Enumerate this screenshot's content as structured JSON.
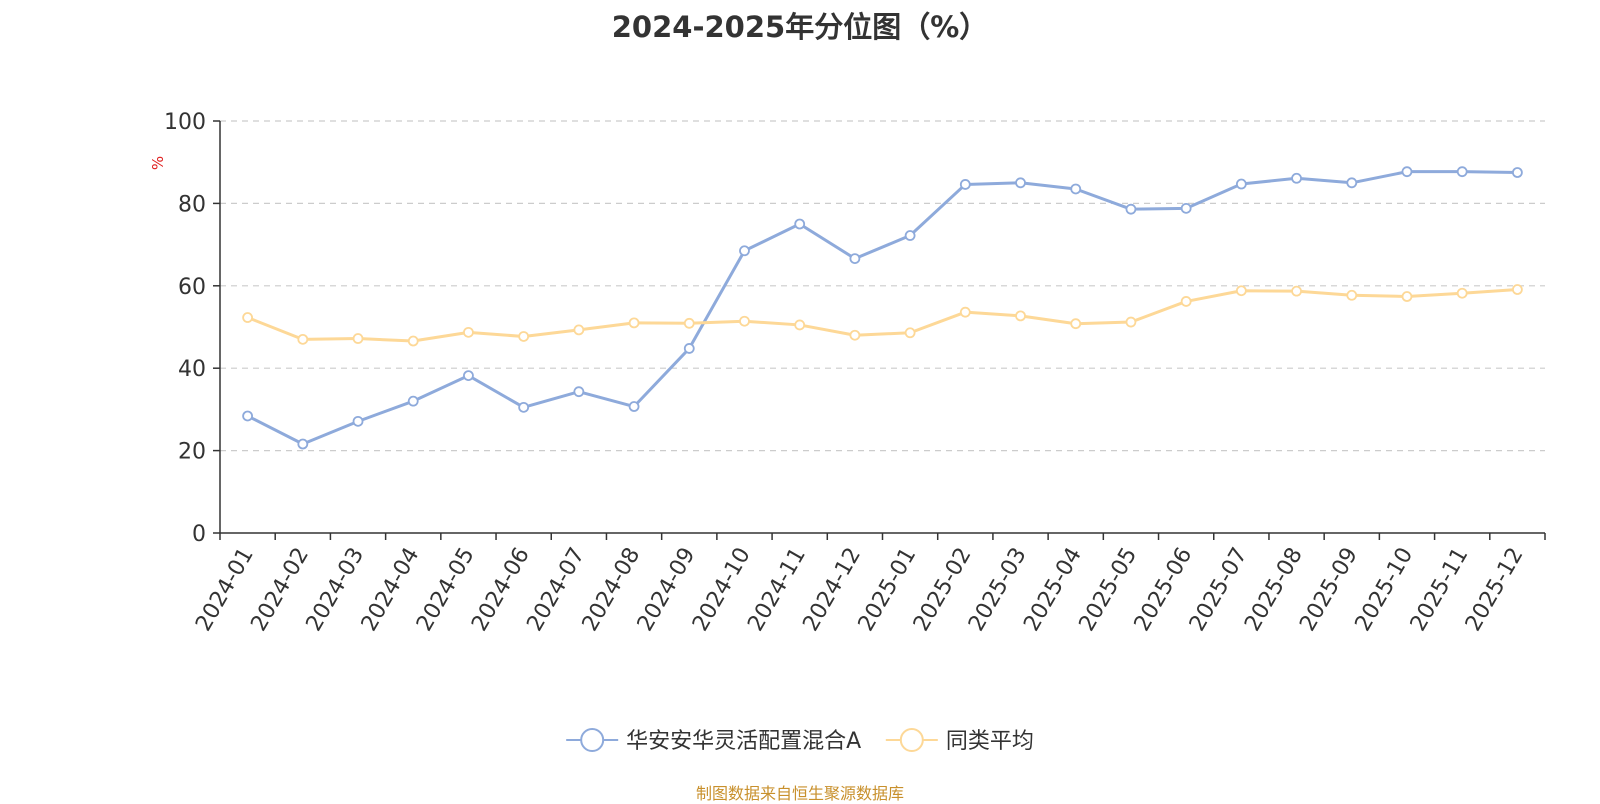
{
  "chart_data": {
    "type": "line",
    "title": "2024-2025年分位图（%）",
    "ylabel": "%",
    "xlabel": "",
    "ylim": [
      0,
      100
    ],
    "yticks": [
      0,
      20,
      40,
      60,
      80,
      100
    ],
    "grid": true,
    "legend_position": "bottom-center",
    "categories": [
      "2024-01",
      "2024-02",
      "2024-03",
      "2024-04",
      "2024-05",
      "2024-06",
      "2024-07",
      "2024-08",
      "2024-09",
      "2024-10",
      "2024-11",
      "2024-12",
      "2025-01",
      "2025-02",
      "2025-03",
      "2025-04",
      "2025-05",
      "2025-06",
      "2025-07",
      "2025-08",
      "2025-09",
      "2025-10",
      "2025-11",
      "2025-12"
    ],
    "series": [
      {
        "name": "华安安华灵活配置混合A",
        "color": "#8eaadb",
        "values": [
          28.4,
          21.6,
          27.1,
          32.0,
          38.2,
          30.5,
          34.3,
          30.7,
          44.8,
          68.5,
          75.0,
          66.6,
          72.2,
          84.6,
          85.0,
          83.5,
          78.6,
          78.8,
          84.7,
          86.1,
          85.0,
          87.7,
          87.7,
          87.5
        ]
      },
      {
        "name": "同类平均",
        "color": "#fdd897",
        "values": [
          52.3,
          47.0,
          47.2,
          46.6,
          48.7,
          47.7,
          49.3,
          51.0,
          50.9,
          51.4,
          50.5,
          48.0,
          48.6,
          53.6,
          52.7,
          50.8,
          51.2,
          56.2,
          58.8,
          58.7,
          57.7,
          57.4,
          58.2,
          59.1
        ]
      }
    ]
  },
  "footer": {
    "source": "制图数据来自恒生聚源数据库"
  },
  "colors": {
    "title": "#333333",
    "axis": "#333333",
    "grid": "#cccccc",
    "ylabel": "#e02020",
    "source": "#c8902c"
  }
}
